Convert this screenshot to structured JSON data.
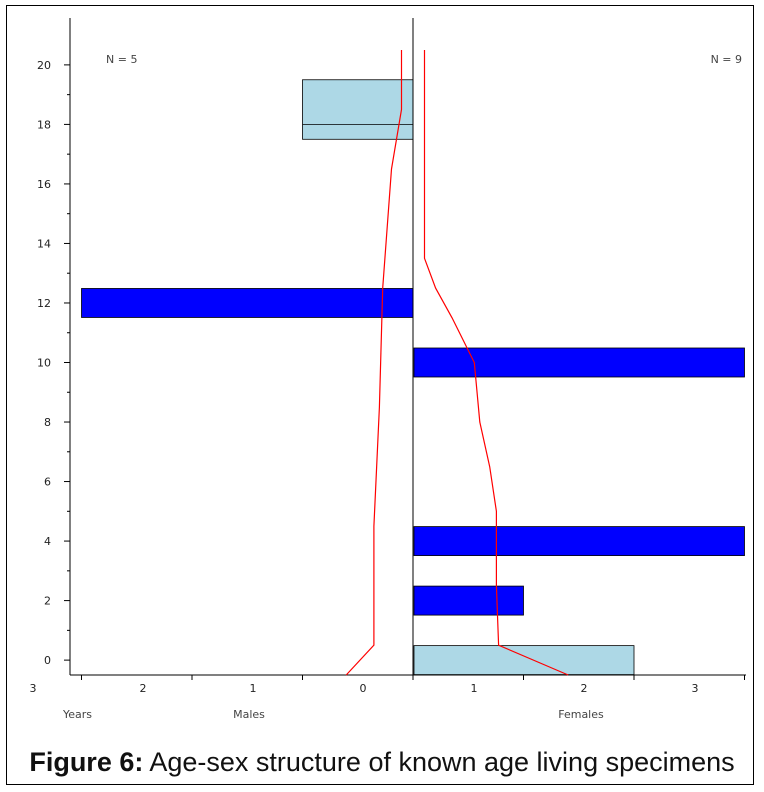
{
  "chart_data": {
    "type": "bar",
    "subtype": "age-sex pyramid",
    "y_axis": {
      "range": [
        -0.5,
        20.5
      ],
      "ticks": [
        0,
        2,
        4,
        6,
        8,
        10,
        12,
        14,
        16,
        18,
        20
      ],
      "minor_step": 1
    },
    "x_axis": {
      "range_males": [
        3,
        0
      ],
      "range_females": [
        0,
        3
      ],
      "tick_labels": [
        "3",
        "2",
        "1",
        "0",
        "1",
        "2",
        "3"
      ],
      "labels": {
        "left": "Years",
        "males": "Males",
        "females": "Females"
      }
    },
    "counts": {
      "males": "N = 5",
      "females": "N = 9"
    },
    "legend": {
      "dark_bar": "blue",
      "light_bar": "light blue"
    },
    "colors": {
      "dark_bar": "#0000ff",
      "light_bar": "#add8e6",
      "curve": "#ff0000",
      "axis": "#000000"
    },
    "series": [
      {
        "sex": "males",
        "bars": [
          {
            "age": 12,
            "count": 3,
            "style": "dark"
          },
          {
            "age": 18,
            "age_span": [
              17.5,
              19.5
            ],
            "count": 1,
            "style": "light"
          }
        ],
        "curve": [
          [
            0.55,
            -0.5
          ],
          [
            0.3,
            0.5
          ],
          [
            0.3,
            4.5
          ],
          [
            0.25,
            8.5
          ],
          [
            0.22,
            12.5
          ],
          [
            0.14,
            16.5
          ],
          [
            0.05,
            18.5
          ],
          [
            0.05,
            20.5
          ]
        ]
      },
      {
        "sex": "females",
        "bars": [
          {
            "age": 0,
            "count": 2,
            "style": "light"
          },
          {
            "age": 2,
            "count": 1,
            "style": "dark"
          },
          {
            "age": 4,
            "count": 3,
            "style": "dark"
          },
          {
            "age": 10,
            "count": 3,
            "style": "dark"
          }
        ],
        "curve": [
          [
            1.35,
            -0.5
          ],
          [
            0.72,
            0.5
          ],
          [
            0.7,
            2.5
          ],
          [
            0.7,
            4.5
          ],
          [
            0.7,
            5.0
          ],
          [
            0.64,
            6.5
          ],
          [
            0.55,
            8.0
          ],
          [
            0.5,
            10.0
          ],
          [
            0.3,
            11.5
          ],
          [
            0.15,
            12.5
          ],
          [
            0.05,
            13.5
          ],
          [
            0.05,
            20.5
          ]
        ]
      }
    ]
  },
  "caption": {
    "label": "Figure 6:",
    "text": " Age-sex structure of known age living specimens"
  }
}
